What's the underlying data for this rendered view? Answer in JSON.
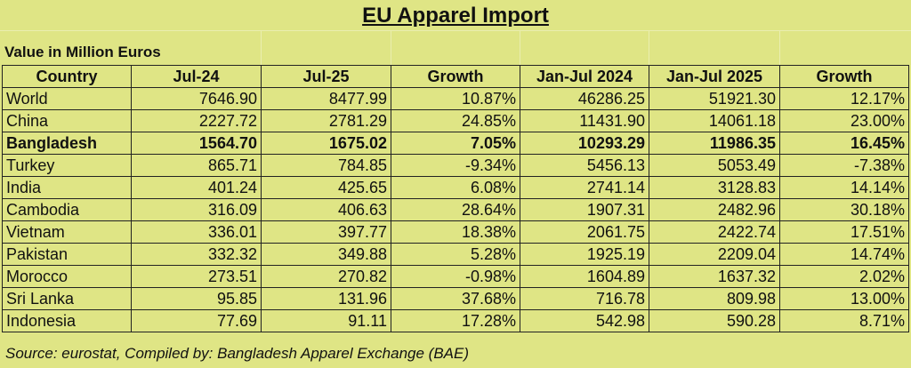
{
  "title": "EU Apparel Import",
  "subtitle": "Value in Million Euros",
  "headers": [
    "Country",
    "Jul-24",
    "Jul-25",
    "Growth",
    "Jan-Jul 2024",
    "Jan-Jul 2025",
    "Growth"
  ],
  "rows": [
    [
      "World",
      "7646.90",
      "8477.99",
      "10.87%",
      "46286.25",
      "51921.30",
      "12.17%"
    ],
    [
      "China",
      "2227.72",
      "2781.29",
      "24.85%",
      "11431.90",
      "14061.18",
      "23.00%"
    ],
    [
      "Bangladesh",
      "1564.70",
      "1675.02",
      "7.05%",
      "10293.29",
      "11986.35",
      "16.45%"
    ],
    [
      "Turkey",
      "865.71",
      "784.85",
      "-9.34%",
      "5456.13",
      "5053.49",
      "-7.38%"
    ],
    [
      "India",
      "401.24",
      "425.65",
      "6.08%",
      "2741.14",
      "3128.83",
      "14.14%"
    ],
    [
      "Cambodia",
      "316.09",
      "406.63",
      "28.64%",
      "1907.31",
      "2482.96",
      "30.18%"
    ],
    [
      "Vietnam",
      "336.01",
      "397.77",
      "18.38%",
      "2061.75",
      "2422.74",
      "17.51%"
    ],
    [
      "Pakistan",
      "332.32",
      "349.88",
      "5.28%",
      "1925.19",
      "2209.04",
      "14.74%"
    ],
    [
      "Morocco",
      "273.51",
      "270.82",
      "-0.98%",
      "1604.89",
      "1637.32",
      "2.02%"
    ],
    [
      "Sri Lanka",
      "95.85",
      "131.96",
      "37.68%",
      "716.78",
      "809.98",
      "13.00%"
    ],
    [
      "Indonesia",
      "77.69",
      "91.11",
      "17.28%",
      "542.98",
      "590.28",
      "8.71%"
    ]
  ],
  "highlight_row": "Bangladesh",
  "source": "Source: eurostat, Compiled by: Bangladesh Apparel Exchange (BAE)",
  "colors": {
    "background": "#dfe585",
    "border": "#222222"
  }
}
